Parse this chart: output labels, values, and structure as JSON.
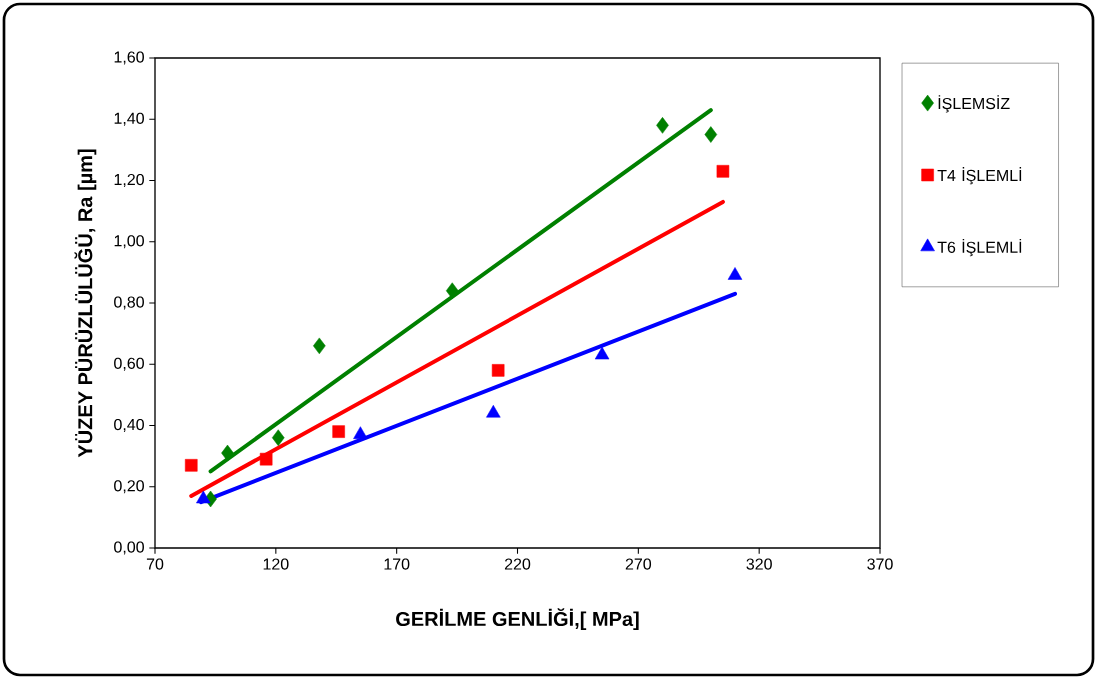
{
  "chart_data": {
    "type": "scatter",
    "xlabel": "GERİLME GENLİĞİ,[ MPa]",
    "ylabel": "YÜZEY PÜRÜZLÜLÜĞÜ, Ra [µm]",
    "xlim": [
      70,
      370
    ],
    "xticks": [
      70,
      120,
      170,
      220,
      270,
      320,
      370
    ],
    "ylim": [
      0,
      1.6
    ],
    "yticks": [
      {
        "value": 0,
        "label": "0,00"
      },
      {
        "value": 0.2,
        "label": "0,20"
      },
      {
        "value": 0.4,
        "label": "0,40"
      },
      {
        "value": 0.6,
        "label": "0,60"
      },
      {
        "value": 0.8,
        "label": "0,80"
      },
      {
        "value": 1.0,
        "label": "1,00"
      },
      {
        "value": 1.2,
        "label": "1,20"
      },
      {
        "value": 1.4,
        "label": "1,40"
      },
      {
        "value": 1.6,
        "label": "1,60"
      }
    ],
    "grid": false,
    "legend": "right",
    "series": [
      {
        "name": "İŞLEMSİZ",
        "color": "#008000",
        "marker": "diamond",
        "x": [
          93,
          100,
          121,
          138,
          193,
          280,
          300
        ],
        "values": [
          0.16,
          0.31,
          0.36,
          0.66,
          0.84,
          1.38,
          1.35
        ]
      },
      {
        "name": "T4 İŞLEMLİ",
        "color": "#ff0000",
        "marker": "square",
        "x": [
          85,
          116,
          146,
          212,
          305
        ],
        "values": [
          0.27,
          0.29,
          0.38,
          0.58,
          1.23
        ]
      },
      {
        "name": "T6 İŞLEMLİ",
        "color": "#0000ff",
        "marker": "triangle",
        "x": [
          90,
          155,
          210,
          255,
          310
        ],
        "values": [
          0.16,
          0.37,
          0.44,
          0.63,
          0.89
        ]
      },
      {
        "type": "line",
        "color": "#008000",
        "marker": "none",
        "x": [
          93,
          300
        ],
        "values": [
          0.25,
          1.43
        ]
      },
      {
        "type": "line",
        "color": "#ff0000",
        "marker": "none",
        "x": [
          85,
          305
        ],
        "values": [
          0.17,
          1.13
        ]
      },
      {
        "type": "line",
        "color": "#0000ff",
        "marker": "none",
        "x": [
          89,
          310
        ],
        "values": [
          0.15,
          0.83
        ]
      }
    ]
  }
}
